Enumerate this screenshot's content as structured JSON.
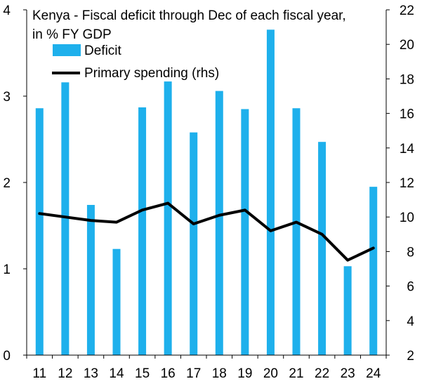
{
  "chart_data": {
    "type": "bar+line",
    "title_lines": [
      "Kenya - Fiscal deficit through Dec of each fiscal year,",
      "in % FY GDP"
    ],
    "categories": [
      "11",
      "12",
      "13",
      "14",
      "15",
      "16",
      "17",
      "18",
      "19",
      "20",
      "21",
      "22",
      "23",
      "24"
    ],
    "series": [
      {
        "name": "Deficit",
        "type": "bar",
        "axis": "left",
        "color": "#1EB0EC",
        "values": [
          2.86,
          3.16,
          1.74,
          1.23,
          2.87,
          3.17,
          2.58,
          3.06,
          2.85,
          3.77,
          2.86,
          2.47,
          1.03,
          1.95
        ]
      },
      {
        "name": "Primary spending (rhs)",
        "type": "line",
        "axis": "right",
        "color": "#000000",
        "values": [
          10.2,
          10.0,
          9.8,
          9.7,
          10.4,
          10.8,
          9.6,
          10.1,
          10.4,
          9.2,
          9.7,
          9.0,
          7.5,
          8.2
        ]
      }
    ],
    "y_left": {
      "min": 0,
      "max": 4,
      "ticks": [
        "0",
        "1",
        "2",
        "3",
        "4"
      ]
    },
    "y_right": {
      "min": 2,
      "max": 22,
      "ticks": [
        "2",
        "4",
        "6",
        "8",
        "10",
        "12",
        "14",
        "16",
        "18",
        "20",
        "22"
      ]
    },
    "legend_position": "top-left",
    "grid": false
  }
}
